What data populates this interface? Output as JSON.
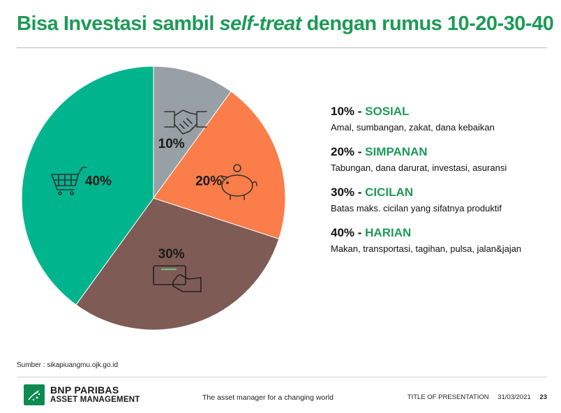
{
  "title": {
    "part1": "Bisa Investasi sambil ",
    "part2": "self-treat",
    "part3": " dengan rumus 10-20-30-40"
  },
  "chart_data": {
    "type": "pie",
    "categories": [
      "SOSIAL",
      "SIMPANAN",
      "CICILAN",
      "HARIAN"
    ],
    "values": [
      10,
      20,
      30,
      40
    ],
    "labels": [
      "10%",
      "20%",
      "30%",
      "40%"
    ],
    "colors": [
      "#97a1a5",
      "#fa7d4a",
      "#7f5b55",
      "#00b58e"
    ],
    "icons": [
      "handshake-icon",
      "piggy-bank-icon",
      "card-payment-icon",
      "shopping-cart-icon"
    ]
  },
  "legend": [
    {
      "pct": "10%",
      "cat": "SOSIAL",
      "desc": "Amal, sumbangan, zakat, dana kebaikan"
    },
    {
      "pct": "20%",
      "cat": "SIMPANAN",
      "desc": "Tabungan, dana darurat, investasi, asuransi"
    },
    {
      "pct": "30%",
      "cat": "CICILAN",
      "desc": "Batas maks. cicilan yang sifatnya produktif"
    },
    {
      "pct": "40%",
      "cat": "HARIAN",
      "desc": "Makan, transportasi, tagihan, pulsa, jalan&jajan"
    }
  ],
  "source": "Sumber : sikapiuangmu.ojk.go.id",
  "footer": {
    "brand_line1": "BNP PARIBAS",
    "brand_line2": "ASSET MANAGEMENT",
    "tagline": "The asset manager for a changing world",
    "presentation_title": "TITLE OF PRESENTATION",
    "date": "31/03/2021",
    "page": "23"
  }
}
